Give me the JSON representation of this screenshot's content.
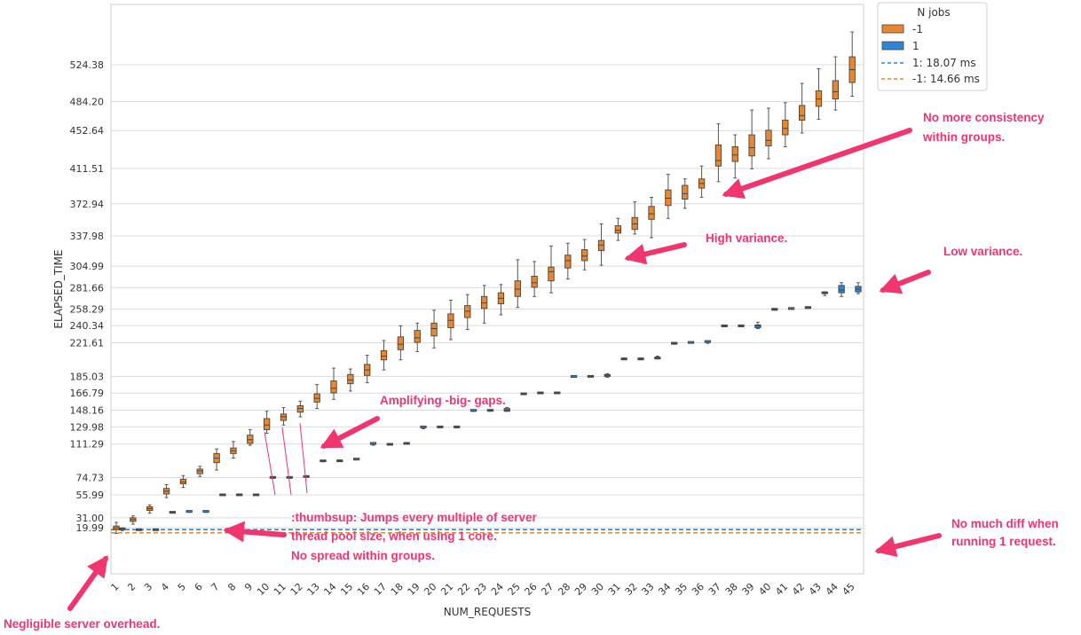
{
  "chart_data": {
    "type": "box",
    "xlabel": "NUM_REQUESTS",
    "ylabel": "ELAPSED_TIME",
    "x": [
      1,
      2,
      3,
      4,
      5,
      6,
      7,
      8,
      9,
      10,
      11,
      12,
      13,
      14,
      15,
      16,
      17,
      18,
      19,
      20,
      21,
      22,
      23,
      24,
      25,
      26,
      27,
      28,
      29,
      30,
      31,
      32,
      33,
      34,
      35,
      36,
      37,
      38,
      39,
      40,
      41,
      42,
      43,
      44,
      45
    ],
    "ytick_labels": [
      "19.99",
      "31.00",
      "55.99",
      "74.73",
      "111.29",
      "129.98",
      "148.16",
      "166.79",
      "185.03",
      "221.61",
      "240.34",
      "258.29",
      "281.66",
      "304.99",
      "337.98",
      "372.94",
      "411.51",
      "452.64",
      "484.20",
      "524.38"
    ],
    "ylim": [
      -30,
      590
    ],
    "legend": {
      "title": "N jobs",
      "position": "top-right",
      "entries": [
        {
          "label": "-1",
          "kind": "box",
          "color": "#e8872f"
        },
        {
          "label": "1",
          "kind": "box",
          "color": "#2e86d4"
        },
        {
          "label": "1: 18.07 ms",
          "kind": "dashed",
          "color": "#2e86d4"
        },
        {
          "label": "-1: 14.66 ms",
          "kind": "dashed",
          "color": "#e8872f"
        }
      ]
    },
    "reference_lines": [
      {
        "name": "1: 18.07 ms",
        "value": 18.07,
        "color": "#2e86d4"
      },
      {
        "name": "-1: 14.66 ms",
        "value": 14.66,
        "color": "#e8872f"
      }
    ],
    "series": [
      {
        "name": "-1",
        "color": "#e8872f",
        "boxes": [
          [
            14,
            18,
            20,
            22,
            26
          ],
          [
            24,
            27,
            29,
            31,
            33
          ],
          [
            36,
            39,
            41,
            43,
            45
          ],
          [
            53,
            57,
            60,
            63,
            67
          ],
          [
            64,
            68,
            70,
            73,
            77
          ],
          [
            76,
            79,
            82,
            84,
            87
          ],
          [
            83,
            91,
            96,
            101,
            106
          ],
          [
            96,
            101,
            104,
            107,
            114
          ],
          [
            110,
            112,
            116,
            121,
            127
          ],
          [
            123,
            127,
            132,
            139,
            147
          ],
          [
            132,
            137,
            141,
            144,
            151
          ],
          [
            141,
            146,
            150,
            153,
            158
          ],
          [
            150,
            157,
            161,
            166,
            176
          ],
          [
            160,
            167,
            172,
            180,
            194
          ],
          [
            169,
            177,
            181,
            187,
            193
          ],
          [
            178,
            186,
            192,
            198,
            208
          ],
          [
            192,
            203,
            207,
            213,
            224
          ],
          [
            203,
            214,
            220,
            228,
            240
          ],
          [
            212,
            222,
            227,
            235,
            243
          ],
          [
            216,
            229,
            237,
            243,
            257
          ],
          [
            225,
            238,
            246,
            253,
            268
          ],
          [
            236,
            249,
            256,
            262,
            274
          ],
          [
            243,
            259,
            265,
            272,
            284
          ],
          [
            252,
            264,
            270,
            276,
            285
          ],
          [
            260,
            272,
            280,
            289,
            312
          ],
          [
            272,
            282,
            287,
            294,
            310
          ],
          [
            276,
            289,
            299,
            304,
            327
          ],
          [
            291,
            303,
            311,
            317,
            330
          ],
          [
            301,
            311,
            316,
            323,
            334
          ],
          [
            306,
            322,
            328,
            333,
            351
          ],
          [
            333,
            341,
            344,
            349,
            357
          ],
          [
            340,
            345,
            351,
            358,
            375
          ],
          [
            336,
            356,
            362,
            370,
            380
          ],
          [
            357,
            371,
            379,
            388,
            405
          ],
          [
            368,
            378,
            384,
            393,
            400
          ],
          [
            380,
            390,
            395,
            400,
            414
          ],
          [
            397,
            414,
            420,
            437,
            460
          ],
          [
            401,
            419,
            426,
            435,
            448
          ],
          [
            411,
            425,
            434,
            448,
            475
          ],
          [
            422,
            436,
            442,
            453,
            477
          ],
          [
            435,
            448,
            455,
            464,
            483
          ],
          [
            450,
            464,
            469,
            480,
            504
          ],
          [
            465,
            479,
            487,
            496,
            520
          ],
          [
            475,
            487,
            495,
            507,
            533
          ],
          [
            490,
            505,
            519,
            533,
            560
          ]
        ]
      },
      {
        "name": "1",
        "color": "#2e86d4",
        "boxes": [
          [
            17,
            18,
            19,
            19,
            20
          ],
          [
            18,
            18,
            18,
            18,
            18
          ],
          [
            18,
            18,
            18,
            18,
            18
          ],
          [
            36,
            37,
            37,
            37,
            37
          ],
          [
            37,
            37,
            37,
            38,
            38
          ],
          [
            37,
            37,
            37,
            38,
            38
          ],
          [
            56,
            56,
            56,
            56,
            56
          ],
          [
            56,
            56,
            56,
            56,
            57
          ],
          [
            56,
            56,
            56,
            56,
            56
          ],
          [
            74,
            74,
            75,
            75,
            75
          ],
          [
            74,
            74,
            75,
            75,
            75
          ],
          [
            75,
            75,
            76,
            76,
            76
          ],
          [
            92,
            92,
            93,
            93,
            93
          ],
          [
            93,
            93,
            93,
            93,
            94
          ],
          [
            94,
            94,
            94,
            95,
            95
          ],
          [
            110,
            111,
            111,
            112,
            113
          ],
          [
            111,
            111,
            111,
            111,
            112
          ],
          [
            112,
            112,
            112,
            112,
            113
          ],
          [
            128,
            129,
            129,
            130,
            130
          ],
          [
            129,
            129,
            130,
            130,
            130
          ],
          [
            129,
            129,
            130,
            130,
            130
          ],
          [
            147,
            147,
            147,
            148,
            148
          ],
          [
            147,
            147,
            148,
            148,
            148
          ],
          [
            147,
            147,
            148,
            150,
            151
          ],
          [
            165,
            165,
            166,
            166,
            166
          ],
          [
            166,
            166,
            167,
            167,
            167
          ],
          [
            167,
            167,
            167,
            167,
            167
          ],
          [
            184,
            184,
            184,
            185,
            185
          ],
          [
            185,
            185,
            185,
            185,
            185
          ],
          [
            184,
            185,
            186,
            187,
            188
          ],
          [
            203,
            203,
            204,
            204,
            205
          ],
          [
            203,
            203,
            204,
            204,
            205
          ],
          [
            204,
            204,
            205,
            206,
            207
          ],
          [
            220,
            221,
            221,
            221,
            222
          ],
          [
            221,
            221,
            221,
            222,
            222
          ],
          [
            221,
            222,
            222,
            223,
            223
          ],
          [
            239,
            239,
            240,
            240,
            241
          ],
          [
            239,
            239,
            240,
            240,
            241
          ],
          [
            237,
            238,
            240,
            241,
            244
          ],
          [
            257,
            257,
            258,
            258,
            259
          ],
          [
            258,
            258,
            258,
            259,
            259
          ],
          [
            259,
            259,
            260,
            260,
            260
          ],
          [
            273,
            275,
            276,
            276,
            277
          ],
          [
            272,
            276,
            279,
            284,
            287
          ],
          [
            275,
            277,
            280,
            283,
            287
          ]
        ]
      }
    ]
  },
  "annotations": {
    "no_more_consistency": [
      "No more consistency",
      "within groups."
    ],
    "high_variance": "High variance.",
    "low_variance": "Low variance.",
    "amplifying": "Amplifying -big- gaps.",
    "thumbsup": [
      ":thumbsup: Jumps every multiple of server",
      "thread pool size, when using 1 core.",
      "No spread within groups."
    ],
    "no_much_diff": [
      "No much diff when",
      "running 1 request."
    ],
    "negligible": "Negligible server overhead."
  }
}
